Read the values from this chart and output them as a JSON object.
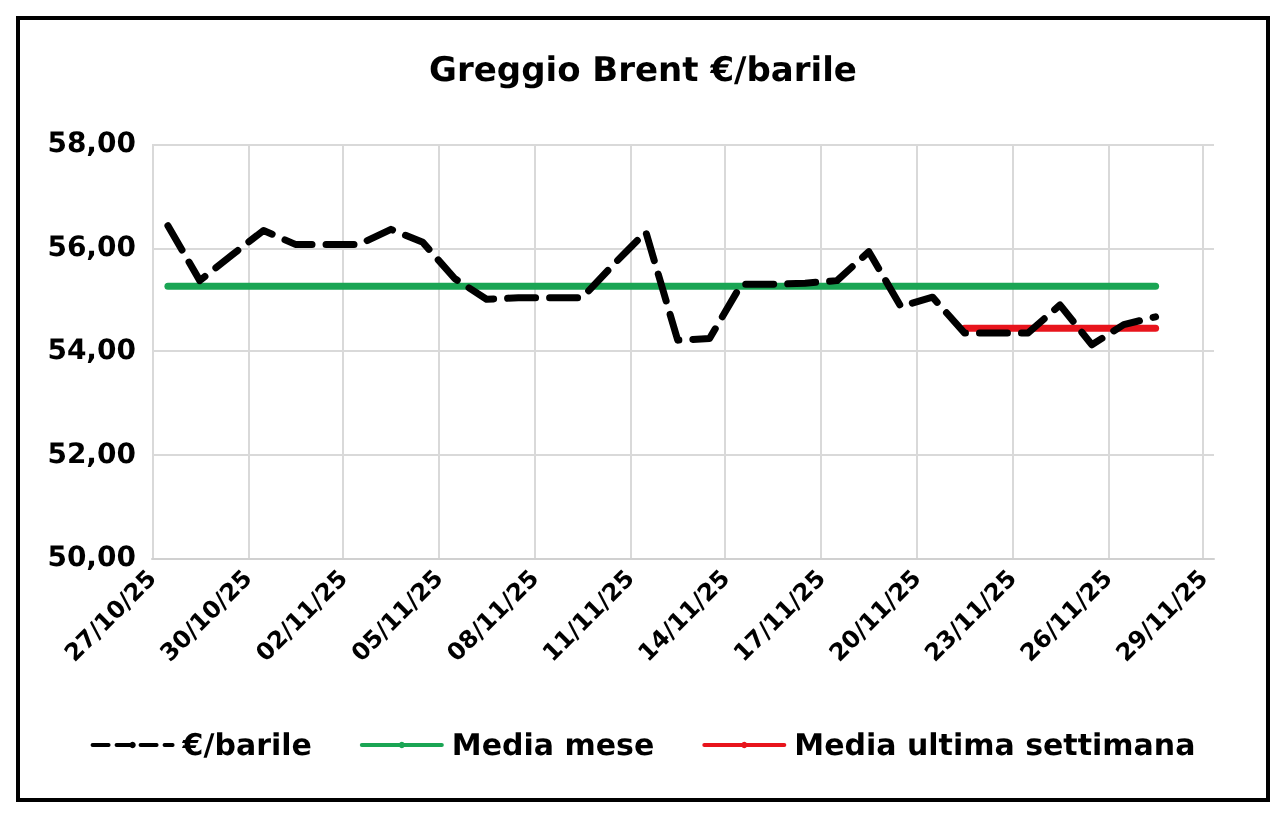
{
  "chart_data": {
    "type": "line",
    "title": "Greggio Brent €/barile",
    "x": [
      "--10-27T12:00",
      "--10-28T12:00",
      "--10-29T12:00",
      "--10-30T12:00",
      "--10-31T12:00",
      "--11-01T12:00",
      "--11-02T12:00",
      "--11-03T12:00",
      "--11-04T12:00",
      "--11-05T12:00",
      "--11-06T12:00",
      "--11-07T12:00",
      "--11-08T12:00",
      "--11-09T12:00",
      "--11-10T12:00",
      "--11-11T12:00",
      "--11-12T12:00",
      "--11-13T12:00",
      "--11-14T12:00",
      "--11-15T12:00",
      "--11-16T12:00",
      "--11-17T12:00",
      "--11-18T12:00",
      "--11-19T12:00",
      "--11-20T12:00",
      "--11-21T12:00",
      "--11-22T12:00",
      "--11-23T12:00",
      "--11-24T12:00",
      "--11-25T12:00",
      "--11-26T12:00",
      "--11-27T12:00"
    ],
    "series": [
      {
        "name": "€/barile",
        "color": "#000000",
        "line_style": "dashed",
        "values": [
          56.42,
          55.36,
          55.85,
          56.33,
          56.06,
          56.06,
          56.06,
          56.35,
          56.1,
          55.4,
          55.0,
          55.03,
          55.03,
          55.03,
          55.68,
          56.3,
          54.21,
          54.24,
          55.29,
          55.29,
          55.31,
          55.36,
          55.92,
          54.86,
          55.04,
          54.35,
          54.35,
          54.35,
          54.89,
          54.12,
          54.51,
          54.66
        ]
      },
      {
        "name": "Media mese",
        "color": "#1aa554",
        "line_style": "solid",
        "x": [
          "--10-27T12:00",
          "--11-27T12:00"
        ],
        "values": [
          55.25,
          55.25
        ]
      },
      {
        "name": "Media ultima settimana",
        "color": "#e8141c",
        "line_style": "solid",
        "x": [
          "--11-21T12:00",
          "--11-27T12:00"
        ],
        "values": [
          54.44,
          54.44
        ]
      }
    ],
    "xlim": [
      "--10-27",
      "--11-29T08:00"
    ],
    "xticks": [
      {
        "value": "--10-27",
        "label": "27/10/25"
      },
      {
        "value": "--10-30",
        "label": "30/10/25"
      },
      {
        "value": "--11-02",
        "label": "02/11/25"
      },
      {
        "value": "--11-05",
        "label": "05/11/25"
      },
      {
        "value": "--11-08",
        "label": "08/11/25"
      },
      {
        "value": "--11-11",
        "label": "11/11/25"
      },
      {
        "value": "--11-14",
        "label": "14/11/25"
      },
      {
        "value": "--11-17",
        "label": "17/11/25"
      },
      {
        "value": "--11-20",
        "label": "20/11/25"
      },
      {
        "value": "--11-23",
        "label": "23/11/25"
      },
      {
        "value": "--11-26",
        "label": "26/11/25"
      },
      {
        "value": "--11-29",
        "label": "29/11/25"
      }
    ],
    "ylim": [
      50,
      58
    ],
    "yticks": [
      {
        "value": 50,
        "label": "50,00"
      },
      {
        "value": 52,
        "label": "52,00"
      },
      {
        "value": 54,
        "label": "54,00"
      },
      {
        "value": 56,
        "label": "56,00"
      },
      {
        "value": 58,
        "label": "58,00"
      }
    ],
    "grid": true,
    "legend": "bottom",
    "marker": "none"
  }
}
